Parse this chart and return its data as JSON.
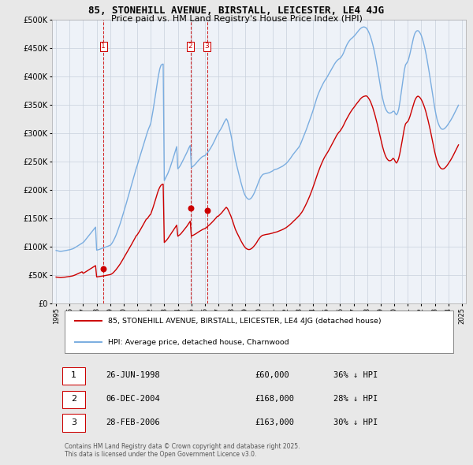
{
  "title": "85, STONEHILL AVENUE, BIRSTALL, LEICESTER, LE4 4JG",
  "subtitle": "Price paid vs. HM Land Registry's House Price Index (HPI)",
  "background_color": "#e8e8e8",
  "plot_bg_color": "#eef2f8",
  "ylim": [
    0,
    500000
  ],
  "yticks": [
    0,
    50000,
    100000,
    150000,
    200000,
    250000,
    300000,
    350000,
    400000,
    450000,
    500000
  ],
  "ytick_labels": [
    "£0",
    "£50K",
    "£100K",
    "£150K",
    "£200K",
    "£250K",
    "£300K",
    "£350K",
    "£400K",
    "£450K",
    "£500K"
  ],
  "hpi_color": "#7aade0",
  "sale_color": "#cc0000",
  "dashed_color": "#cc0000",
  "transactions": [
    {
      "label": "1",
      "date_num": 1998.49,
      "price": 60000,
      "desc": "26-JUN-1998",
      "amount": "£60,000",
      "pct": "36% ↓ HPI"
    },
    {
      "label": "2",
      "date_num": 2004.93,
      "price": 168000,
      "desc": "06-DEC-2004",
      "amount": "£168,000",
      "pct": "28% ↓ HPI"
    },
    {
      "label": "3",
      "date_num": 2006.16,
      "price": 163000,
      "desc": "28-FEB-2006",
      "amount": "£163,000",
      "pct": "30% ↓ HPI"
    }
  ],
  "legend_house_label": "85, STONEHILL AVENUE, BIRSTALL, LEICESTER, LE4 4JG (detached house)",
  "legend_hpi_label": "HPI: Average price, detached house, Charnwood",
  "footer": "Contains HM Land Registry data © Crown copyright and database right 2025.\nThis data is licensed under the Open Government Licence v3.0.",
  "hpi_data_years": [
    1995.0,
    1995.083,
    1995.167,
    1995.25,
    1995.333,
    1995.417,
    1995.5,
    1995.583,
    1995.667,
    1995.75,
    1995.833,
    1995.917,
    1996.0,
    1996.083,
    1996.167,
    1996.25,
    1996.333,
    1996.417,
    1996.5,
    1996.583,
    1996.667,
    1996.75,
    1996.833,
    1996.917,
    1997.0,
    1997.083,
    1997.167,
    1997.25,
    1997.333,
    1997.417,
    1997.5,
    1997.583,
    1997.667,
    1997.75,
    1997.833,
    1997.917,
    1998.0,
    1998.083,
    1998.167,
    1998.25,
    1998.333,
    1998.417,
    1998.5,
    1998.583,
    1998.667,
    1998.75,
    1998.833,
    1998.917,
    1999.0,
    1999.083,
    1999.167,
    1999.25,
    1999.333,
    1999.417,
    1999.5,
    1999.583,
    1999.667,
    1999.75,
    1999.833,
    1999.917,
    2000.0,
    2000.083,
    2000.167,
    2000.25,
    2000.333,
    2000.417,
    2000.5,
    2000.583,
    2000.667,
    2000.75,
    2000.833,
    2000.917,
    2001.0,
    2001.083,
    2001.167,
    2001.25,
    2001.333,
    2001.417,
    2001.5,
    2001.583,
    2001.667,
    2001.75,
    2001.833,
    2001.917,
    2002.0,
    2002.083,
    2002.167,
    2002.25,
    2002.333,
    2002.417,
    2002.5,
    2002.583,
    2002.667,
    2002.75,
    2002.833,
    2002.917,
    2003.0,
    2003.083,
    2003.167,
    2003.25,
    2003.333,
    2003.417,
    2003.5,
    2003.583,
    2003.667,
    2003.75,
    2003.833,
    2003.917,
    2004.0,
    2004.083,
    2004.167,
    2004.25,
    2004.333,
    2004.417,
    2004.5,
    2004.583,
    2004.667,
    2004.75,
    2004.833,
    2004.917,
    2005.0,
    2005.083,
    2005.167,
    2005.25,
    2005.333,
    2005.417,
    2005.5,
    2005.583,
    2005.667,
    2005.75,
    2005.833,
    2005.917,
    2006.0,
    2006.083,
    2006.167,
    2006.25,
    2006.333,
    2006.417,
    2006.5,
    2006.583,
    2006.667,
    2006.75,
    2006.833,
    2006.917,
    2007.0,
    2007.083,
    2007.167,
    2007.25,
    2007.333,
    2007.417,
    2007.5,
    2007.583,
    2007.667,
    2007.75,
    2007.833,
    2007.917,
    2008.0,
    2008.083,
    2008.167,
    2008.25,
    2008.333,
    2008.417,
    2008.5,
    2008.583,
    2008.667,
    2008.75,
    2008.833,
    2008.917,
    2009.0,
    2009.083,
    2009.167,
    2009.25,
    2009.333,
    2009.417,
    2009.5,
    2009.583,
    2009.667,
    2009.75,
    2009.833,
    2009.917,
    2010.0,
    2010.083,
    2010.167,
    2010.25,
    2010.333,
    2010.417,
    2010.5,
    2010.583,
    2010.667,
    2010.75,
    2010.833,
    2010.917,
    2011.0,
    2011.083,
    2011.167,
    2011.25,
    2011.333,
    2011.417,
    2011.5,
    2011.583,
    2011.667,
    2011.75,
    2011.833,
    2011.917,
    2012.0,
    2012.083,
    2012.167,
    2012.25,
    2012.333,
    2012.417,
    2012.5,
    2012.583,
    2012.667,
    2012.75,
    2012.833,
    2012.917,
    2013.0,
    2013.083,
    2013.167,
    2013.25,
    2013.333,
    2013.417,
    2013.5,
    2013.583,
    2013.667,
    2013.75,
    2013.833,
    2013.917,
    2014.0,
    2014.083,
    2014.167,
    2014.25,
    2014.333,
    2014.417,
    2014.5,
    2014.583,
    2014.667,
    2014.75,
    2014.833,
    2014.917,
    2015.0,
    2015.083,
    2015.167,
    2015.25,
    2015.333,
    2015.417,
    2015.5,
    2015.583,
    2015.667,
    2015.75,
    2015.833,
    2015.917,
    2016.0,
    2016.083,
    2016.167,
    2016.25,
    2016.333,
    2016.417,
    2016.5,
    2016.583,
    2016.667,
    2016.75,
    2016.833,
    2016.917,
    2017.0,
    2017.083,
    2017.167,
    2017.25,
    2017.333,
    2017.417,
    2017.5,
    2017.583,
    2017.667,
    2017.75,
    2017.833,
    2017.917,
    2018.0,
    2018.083,
    2018.167,
    2018.25,
    2018.333,
    2018.417,
    2018.5,
    2018.583,
    2018.667,
    2018.75,
    2018.833,
    2018.917,
    2019.0,
    2019.083,
    2019.167,
    2019.25,
    2019.333,
    2019.417,
    2019.5,
    2019.583,
    2019.667,
    2019.75,
    2019.833,
    2019.917,
    2020.0,
    2020.083,
    2020.167,
    2020.25,
    2020.333,
    2020.417,
    2020.5,
    2020.583,
    2020.667,
    2020.75,
    2020.833,
    2020.917,
    2021.0,
    2021.083,
    2021.167,
    2021.25,
    2021.333,
    2021.417,
    2021.5,
    2021.583,
    2021.667,
    2021.75,
    2021.833,
    2021.917,
    2022.0,
    2022.083,
    2022.167,
    2022.25,
    2022.333,
    2022.417,
    2022.5,
    2022.583,
    2022.667,
    2022.75,
    2022.833,
    2022.917,
    2023.0,
    2023.083,
    2023.167,
    2023.25,
    2023.333,
    2023.417,
    2023.5,
    2023.583,
    2023.667,
    2023.75,
    2023.833,
    2023.917,
    2024.0,
    2024.083,
    2024.167,
    2024.25,
    2024.333,
    2024.417,
    2024.5,
    2024.583,
    2024.667,
    2024.75
  ],
  "hpi_data_values": [
    93000,
    92500,
    92000,
    91500,
    91200,
    91500,
    91800,
    92200,
    92600,
    93000,
    93400,
    93800,
    94200,
    94800,
    95300,
    96000,
    97000,
    98200,
    99500,
    100800,
    102000,
    103200,
    104500,
    105800,
    107000,
    109000,
    111500,
    114000,
    116500,
    119000,
    121500,
    124000,
    126500,
    129000,
    131500,
    134000,
    93500,
    94000,
    94500,
    95200,
    96000,
    96800,
    97500,
    98200,
    99000,
    99700,
    100400,
    101200,
    102000,
    104000,
    107000,
    110500,
    114500,
    119000,
    124000,
    129500,
    135000,
    141000,
    147500,
    154500,
    161000,
    167500,
    174000,
    181000,
    188000,
    195000,
    202000,
    209000,
    216000,
    223000,
    230000,
    237000,
    243000,
    249500,
    256000,
    262500,
    269000,
    275500,
    282000,
    288500,
    295000,
    301500,
    307000,
    312000,
    317000,
    328000,
    339500,
    352000,
    364500,
    378000,
    391500,
    403000,
    413000,
    419000,
    421000,
    421500,
    216000,
    220000,
    224000,
    228000,
    233000,
    238000,
    244000,
    250000,
    256500,
    263000,
    269500,
    276000,
    237000,
    239000,
    242000,
    245500,
    249500,
    253500,
    257500,
    261500,
    265500,
    270000,
    274500,
    278000,
    239000,
    240500,
    242000,
    244000,
    246000,
    248500,
    251000,
    253000,
    255000,
    257000,
    258500,
    259500,
    260000,
    262000,
    264500,
    267000,
    270000,
    273000,
    276500,
    280000,
    284000,
    288000,
    292500,
    297000,
    300000,
    303500,
    306500,
    310000,
    314000,
    318500,
    322000,
    325000,
    322000,
    315000,
    307000,
    298000,
    288000,
    276000,
    265000,
    254000,
    245000,
    237000,
    229000,
    221000,
    213000,
    206000,
    199000,
    193000,
    189000,
    186000,
    184000,
    183000,
    183500,
    185000,
    187500,
    191000,
    195000,
    200000,
    205000,
    210500,
    215500,
    220000,
    223500,
    226000,
    227500,
    228000,
    228500,
    229000,
    229500,
    230000,
    231000,
    232000,
    233000,
    234500,
    235500,
    236000,
    236500,
    237500,
    238500,
    239500,
    240500,
    241500,
    243000,
    244500,
    246000,
    248000,
    250500,
    253000,
    255500,
    258500,
    261500,
    264000,
    266500,
    269000,
    271500,
    274000,
    277000,
    281000,
    286000,
    291000,
    296000,
    301000,
    306000,
    311500,
    317000,
    322500,
    328000,
    334000,
    340000,
    346500,
    353000,
    359500,
    365500,
    370500,
    375000,
    379500,
    383500,
    387500,
    391000,
    394000,
    397000,
    400500,
    404000,
    407500,
    411000,
    414500,
    418000,
    421500,
    424500,
    427000,
    429000,
    430500,
    431500,
    434000,
    437000,
    441000,
    446000,
    451000,
    455500,
    459000,
    462000,
    464500,
    466500,
    468000,
    470000,
    472000,
    474500,
    477000,
    479500,
    482000,
    484000,
    485500,
    486500,
    487000,
    486500,
    485500,
    483000,
    479500,
    475000,
    469500,
    463000,
    455500,
    447000,
    437500,
    427000,
    415500,
    403500,
    391000,
    379000,
    368000,
    358500,
    350500,
    344500,
    340000,
    337000,
    335500,
    335000,
    335500,
    336500,
    338500,
    338000,
    334000,
    332000,
    335000,
    342000,
    354000,
    368000,
    383000,
    397000,
    411000,
    420000,
    423000,
    426000,
    432000,
    440000,
    449000,
    458000,
    467000,
    474000,
    478000,
    480000,
    480500,
    479000,
    476000,
    472000,
    466000,
    459000,
    451000,
    441500,
    431000,
    419500,
    407500,
    394500,
    381500,
    368500,
    355500,
    343500,
    333000,
    324000,
    317500,
    312500,
    309000,
    307000,
    306500,
    307000,
    308500,
    310500,
    313000,
    316000,
    319000,
    322000,
    325500,
    329000,
    333000,
    337000,
    341000,
    345000,
    349000
  ],
  "sale_data_years": [
    1995.0,
    1995.083,
    1995.167,
    1995.25,
    1995.333,
    1995.417,
    1995.5,
    1995.583,
    1995.667,
    1995.75,
    1995.833,
    1995.917,
    1996.0,
    1996.083,
    1996.167,
    1996.25,
    1996.333,
    1996.417,
    1996.5,
    1996.583,
    1996.667,
    1996.75,
    1996.833,
    1996.917,
    1997.0,
    1997.083,
    1997.167,
    1997.25,
    1997.333,
    1997.417,
    1997.5,
    1997.583,
    1997.667,
    1997.75,
    1997.833,
    1997.917,
    1998.0,
    1998.083,
    1998.167,
    1998.25,
    1998.333,
    1998.417,
    1998.5,
    1998.583,
    1998.667,
    1998.75,
    1998.833,
    1998.917,
    1999.0,
    1999.083,
    1999.167,
    1999.25,
    1999.333,
    1999.417,
    1999.5,
    1999.583,
    1999.667,
    1999.75,
    1999.833,
    1999.917,
    2000.0,
    2000.083,
    2000.167,
    2000.25,
    2000.333,
    2000.417,
    2000.5,
    2000.583,
    2000.667,
    2000.75,
    2000.833,
    2000.917,
    2001.0,
    2001.083,
    2001.167,
    2001.25,
    2001.333,
    2001.417,
    2001.5,
    2001.583,
    2001.667,
    2001.75,
    2001.833,
    2001.917,
    2002.0,
    2002.083,
    2002.167,
    2002.25,
    2002.333,
    2002.417,
    2002.5,
    2002.583,
    2002.667,
    2002.75,
    2002.833,
    2002.917,
    2003.0,
    2003.083,
    2003.167,
    2003.25,
    2003.333,
    2003.417,
    2003.5,
    2003.583,
    2003.667,
    2003.75,
    2003.833,
    2003.917,
    2004.0,
    2004.083,
    2004.167,
    2004.25,
    2004.333,
    2004.417,
    2004.5,
    2004.583,
    2004.667,
    2004.75,
    2004.833,
    2004.917,
    2005.0,
    2005.083,
    2005.167,
    2005.25,
    2005.333,
    2005.417,
    2005.5,
    2005.583,
    2005.667,
    2005.75,
    2005.833,
    2005.917,
    2006.0,
    2006.083,
    2006.167,
    2006.25,
    2006.333,
    2006.417,
    2006.5,
    2006.583,
    2006.667,
    2006.75,
    2006.833,
    2006.917,
    2007.0,
    2007.083,
    2007.167,
    2007.25,
    2007.333,
    2007.417,
    2007.5,
    2007.583,
    2007.667,
    2007.75,
    2007.833,
    2007.917,
    2008.0,
    2008.083,
    2008.167,
    2008.25,
    2008.333,
    2008.417,
    2008.5,
    2008.583,
    2008.667,
    2008.75,
    2008.833,
    2008.917,
    2009.0,
    2009.083,
    2009.167,
    2009.25,
    2009.333,
    2009.417,
    2009.5,
    2009.583,
    2009.667,
    2009.75,
    2009.833,
    2009.917,
    2010.0,
    2010.083,
    2010.167,
    2010.25,
    2010.333,
    2010.417,
    2010.5,
    2010.583,
    2010.667,
    2010.75,
    2010.833,
    2010.917,
    2011.0,
    2011.083,
    2011.167,
    2011.25,
    2011.333,
    2011.417,
    2011.5,
    2011.583,
    2011.667,
    2011.75,
    2011.833,
    2011.917,
    2012.0,
    2012.083,
    2012.167,
    2012.25,
    2012.333,
    2012.417,
    2012.5,
    2012.583,
    2012.667,
    2012.75,
    2012.833,
    2012.917,
    2013.0,
    2013.083,
    2013.167,
    2013.25,
    2013.333,
    2013.417,
    2013.5,
    2013.583,
    2013.667,
    2013.75,
    2013.833,
    2013.917,
    2014.0,
    2014.083,
    2014.167,
    2014.25,
    2014.333,
    2014.417,
    2014.5,
    2014.583,
    2014.667,
    2014.75,
    2014.833,
    2014.917,
    2015.0,
    2015.083,
    2015.167,
    2015.25,
    2015.333,
    2015.417,
    2015.5,
    2015.583,
    2015.667,
    2015.75,
    2015.833,
    2015.917,
    2016.0,
    2016.083,
    2016.167,
    2016.25,
    2016.333,
    2016.417,
    2016.5,
    2016.583,
    2016.667,
    2016.75,
    2016.833,
    2016.917,
    2017.0,
    2017.083,
    2017.167,
    2017.25,
    2017.333,
    2017.417,
    2017.5,
    2017.583,
    2017.667,
    2017.75,
    2017.833,
    2017.917,
    2018.0,
    2018.083,
    2018.167,
    2018.25,
    2018.333,
    2018.417,
    2018.5,
    2018.583,
    2018.667,
    2018.75,
    2018.833,
    2018.917,
    2019.0,
    2019.083,
    2019.167,
    2019.25,
    2019.333,
    2019.417,
    2019.5,
    2019.583,
    2019.667,
    2019.75,
    2019.833,
    2019.917,
    2020.0,
    2020.083,
    2020.167,
    2020.25,
    2020.333,
    2020.417,
    2020.5,
    2020.583,
    2020.667,
    2020.75,
    2020.833,
    2020.917,
    2021.0,
    2021.083,
    2021.167,
    2021.25,
    2021.333,
    2021.417,
    2021.5,
    2021.583,
    2021.667,
    2021.75,
    2021.833,
    2021.917,
    2022.0,
    2022.083,
    2022.167,
    2022.25,
    2022.333,
    2022.417,
    2022.5,
    2022.583,
    2022.667,
    2022.75,
    2022.833,
    2022.917,
    2023.0,
    2023.083,
    2023.167,
    2023.25,
    2023.333,
    2023.417,
    2023.5,
    2023.583,
    2023.667,
    2023.75,
    2023.833,
    2023.917,
    2024.0,
    2024.083,
    2024.167,
    2024.25,
    2024.333,
    2024.417,
    2024.5,
    2024.583,
    2024.667,
    2024.75
  ],
  "sale_data_values": [
    46000,
    45700,
    45400,
    45200,
    45000,
    45200,
    45400,
    45600,
    45900,
    46200,
    46500,
    46800,
    47100,
    47400,
    47800,
    48300,
    49000,
    49800,
    50700,
    51600,
    52500,
    53400,
    54300,
    55300,
    52700,
    53700,
    54900,
    56200,
    57400,
    58700,
    60000,
    61200,
    62500,
    63700,
    65000,
    66200,
    46200,
    46500,
    46700,
    47000,
    47400,
    47800,
    48100,
    48500,
    48900,
    49200,
    49600,
    50000,
    50400,
    51200,
    52500,
    54300,
    56400,
    58700,
    61200,
    63900,
    66700,
    69600,
    72800,
    76300,
    79700,
    83000,
    86300,
    89800,
    93200,
    96700,
    100200,
    103800,
    107400,
    111000,
    114700,
    118500,
    120500,
    123500,
    126800,
    130200,
    133700,
    137300,
    140800,
    144400,
    148000,
    149200,
    152100,
    155000,
    157000,
    162500,
    168500,
    174800,
    181200,
    187800,
    194500,
    200000,
    204500,
    207600,
    209300,
    209800,
    107000,
    109000,
    111000,
    113500,
    116500,
    119500,
    122500,
    125500,
    128500,
    131500,
    134500,
    137500,
    118000,
    119500,
    121000,
    123000,
    125500,
    128000,
    130500,
    133000,
    135500,
    138500,
    141500,
    144500,
    118500,
    119300,
    120100,
    121200,
    122400,
    123800,
    125200,
    126400,
    127600,
    128800,
    129900,
    130800,
    131400,
    132800,
    134500,
    136000,
    137900,
    139800,
    141800,
    143800,
    146000,
    148200,
    150500,
    153000,
    153500,
    155500,
    157500,
    159500,
    162000,
    164500,
    167000,
    169000,
    167000,
    163000,
    158500,
    154000,
    148500,
    142500,
    136500,
    130500,
    126000,
    122000,
    118000,
    114000,
    110000,
    106500,
    103000,
    100000,
    97500,
    96000,
    95000,
    94500,
    94800,
    95800,
    97200,
    99200,
    101500,
    104000,
    107000,
    110500,
    113500,
    116000,
    118000,
    119500,
    120000,
    120500,
    121000,
    121300,
    121600,
    122000,
    122500,
    123000,
    123500,
    124200,
    124800,
    125200,
    125700,
    126500,
    127200,
    128000,
    128900,
    129800,
    130800,
    131900,
    133000,
    134500,
    136000,
    137600,
    139300,
    141200,
    143200,
    145200,
    147000,
    149000,
    151000,
    153000,
    155000,
    157500,
    160200,
    163500,
    167200,
    171200,
    175200,
    179500,
    184000,
    188800,
    193700,
    199000,
    204500,
    210200,
    216200,
    222200,
    228000,
    233500,
    238500,
    243500,
    248000,
    252500,
    256500,
    260000,
    263000,
    266200,
    269700,
    273400,
    277200,
    281000,
    284800,
    288700,
    292500,
    296000,
    299000,
    301500,
    303500,
    306500,
    309700,
    313500,
    317700,
    321800,
    325500,
    329000,
    332500,
    336000,
    339000,
    342000,
    344500,
    347000,
    350000,
    352500,
    355000,
    357500,
    360000,
    362000,
    363500,
    364500,
    365000,
    365500,
    364500,
    362000,
    359000,
    355000,
    350000,
    344500,
    338000,
    331000,
    323500,
    315500,
    307000,
    298500,
    290000,
    281500,
    273500,
    266500,
    261000,
    256500,
    253500,
    251500,
    251000,
    251500,
    253000,
    255500,
    253500,
    249500,
    247000,
    250000,
    255500,
    264000,
    274500,
    285500,
    297000,
    308500,
    316000,
    318500,
    320000,
    324000,
    329500,
    336000,
    342500,
    349500,
    356000,
    360500,
    363500,
    365000,
    364000,
    362000,
    359000,
    355000,
    350000,
    344500,
    338000,
    330500,
    322500,
    314000,
    305000,
    295500,
    285500,
    275500,
    266000,
    258000,
    251000,
    245500,
    241500,
    238500,
    237000,
    236500,
    237000,
    238500,
    240500,
    243000,
    246000,
    249000,
    252000,
    255500,
    259000,
    263000,
    267000,
    271000,
    275000,
    279000
  ]
}
